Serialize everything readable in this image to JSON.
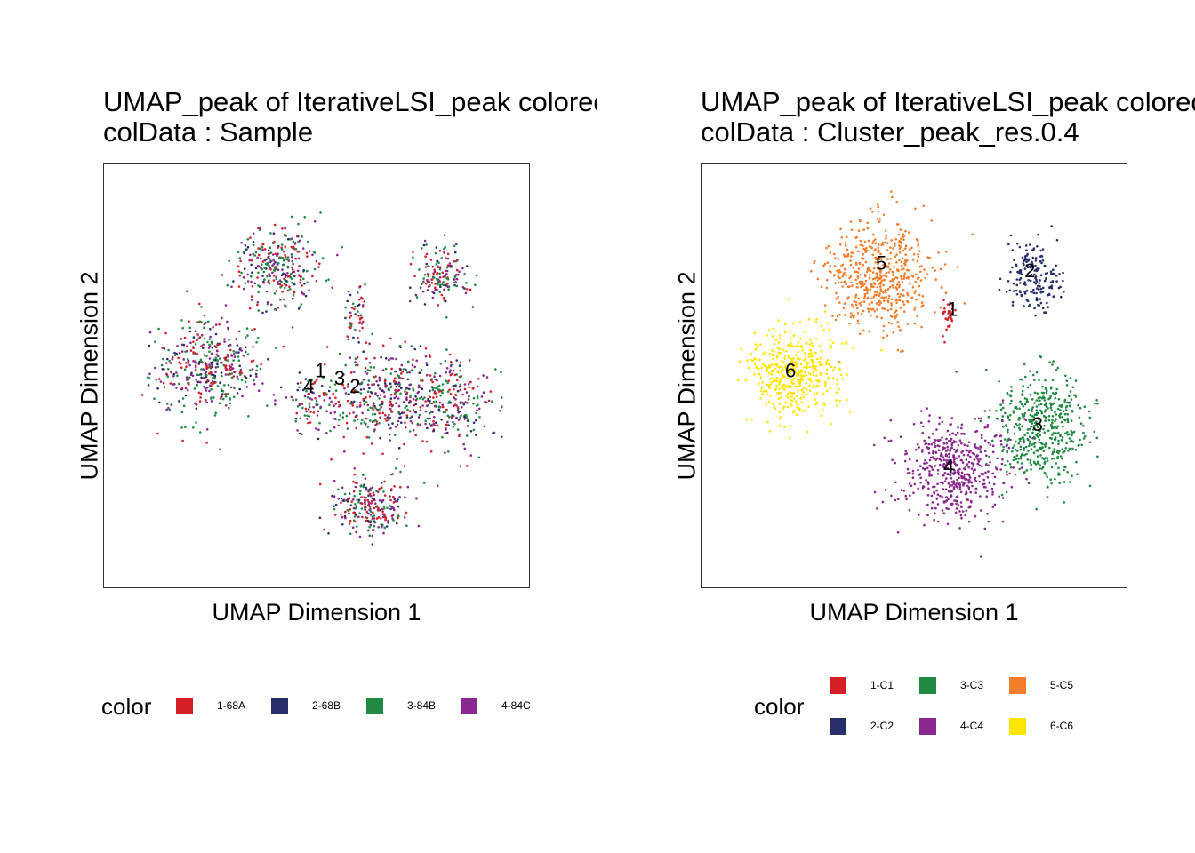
{
  "chart_data": [
    {
      "type": "scatter",
      "title_line1": "UMAP_peak of IterativeLSI_peak  colored by",
      "title_line2": "colData :  Sample",
      "xlabel": "UMAP Dimension 1",
      "ylabel": "UMAP Dimension 2",
      "xlim": [
        0,
        10
      ],
      "ylim": [
        0,
        10
      ],
      "legend": {
        "title": "color",
        "position": "bottom",
        "entries": [
          {
            "label": "1-68A",
            "color": "#D51F26"
          },
          {
            "label": "2-68B",
            "color": "#272E6A"
          },
          {
            "label": "3-84B",
            "color": "#208A42"
          },
          {
            "label": "4-84C",
            "color": "#89288F"
          }
        ]
      },
      "series_weights": [
        0.27,
        0.16,
        0.3,
        0.27
      ],
      "regions": [
        {
          "x": 2.2,
          "y": 5.2,
          "sx": 1.1,
          "sy": 1.05,
          "n": 420
        },
        {
          "x": 4.0,
          "y": 7.8,
          "sx": 0.9,
          "sy": 0.85,
          "n": 300
        },
        {
          "x": 6.8,
          "y": 4.5,
          "sx": 1.2,
          "sy": 1.1,
          "n": 380
        },
        {
          "x": 6.4,
          "y": 1.6,
          "sx": 0.85,
          "sy": 0.7,
          "n": 240
        },
        {
          "x": 8.6,
          "y": 4.3,
          "sx": 0.8,
          "sy": 1.0,
          "n": 220
        },
        {
          "x": 8.2,
          "y": 7.6,
          "sx": 0.65,
          "sy": 0.7,
          "n": 150
        },
        {
          "x": 6.0,
          "y": 6.6,
          "sx": 0.25,
          "sy": 0.6,
          "n": 50
        },
        {
          "x": 4.9,
          "y": 4.3,
          "sx": 0.6,
          "sy": 0.7,
          "n": 90
        }
      ],
      "cluster_labels": [
        {
          "text": "1",
          "x": 5.1,
          "y": 5.1
        },
        {
          "text": "4",
          "x": 4.8,
          "y": 4.7
        },
        {
          "text": "3",
          "x": 5.6,
          "y": 4.9
        },
        {
          "text": "2",
          "x": 6.0,
          "y": 4.7
        }
      ]
    },
    {
      "type": "scatter",
      "title_line1": "UMAP_peak of IterativeLSI_peak  colored by",
      "title_line2": "colData :  Cluster_peak_res.0.4",
      "xlabel": "UMAP Dimension 1",
      "ylabel": "UMAP Dimension 2",
      "xlim": [
        0,
        10
      ],
      "ylim": [
        0,
        10
      ],
      "legend": {
        "title": "color",
        "position": "bottom",
        "entries": [
          {
            "label": "1-C1",
            "color": "#D51F26"
          },
          {
            "label": "2-C2",
            "color": "#272E6A"
          },
          {
            "label": "3-C3",
            "color": "#208A42"
          },
          {
            "label": "4-C4",
            "color": "#89288F"
          },
          {
            "label": "5-C5",
            "color": "#F47D2B"
          },
          {
            "label": "6-C6",
            "color": "#FEE500"
          }
        ]
      },
      "regions": [
        {
          "series": 4,
          "x": 4.1,
          "y": 7.6,
          "sx": 1.2,
          "sy": 1.15,
          "n": 520
        },
        {
          "series": 1,
          "x": 8.1,
          "y": 7.6,
          "sx": 0.6,
          "sy": 0.75,
          "n": 180
        },
        {
          "series": 0,
          "x": 5.9,
          "y": 6.6,
          "sx": 0.12,
          "sy": 0.35,
          "n": 30
        },
        {
          "series": 2,
          "x": 8.3,
          "y": 3.6,
          "sx": 0.95,
          "sy": 1.25,
          "n": 480
        },
        {
          "series": 3,
          "x": 6.0,
          "y": 2.6,
          "sx": 1.15,
          "sy": 1.15,
          "n": 520
        },
        {
          "series": 5,
          "x": 1.9,
          "y": 5.1,
          "sx": 1.0,
          "sy": 1.0,
          "n": 440
        }
      ],
      "cluster_labels": [
        {
          "text": "5",
          "x": 4.15,
          "y": 7.9
        },
        {
          "text": "2",
          "x": 8.0,
          "y": 7.7
        },
        {
          "text": "1",
          "x": 6.0,
          "y": 6.7
        },
        {
          "text": "6",
          "x": 1.8,
          "y": 5.1
        },
        {
          "text": "3",
          "x": 8.2,
          "y": 3.7
        },
        {
          "text": "4",
          "x": 5.9,
          "y": 2.6
        }
      ]
    }
  ]
}
